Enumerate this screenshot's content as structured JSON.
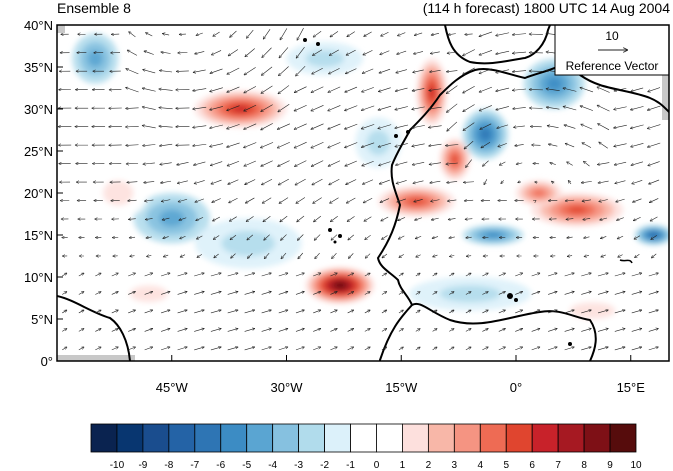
{
  "header": {
    "left": "Ensemble 8",
    "right": "(114 h forecast) 1800 UTC 14 Aug 2004"
  },
  "axes": {
    "y_labels": [
      "40°N",
      "35°N",
      "30°N",
      "25°N",
      "20°N",
      "15°N",
      "10°N",
      "5°N",
      "0°"
    ],
    "x_labels": [
      "45°W",
      "30°W",
      "15°W",
      "0°",
      "15°E"
    ]
  },
  "reference_vector": {
    "value": "10",
    "label": "Reference Vector"
  },
  "colorbar": {
    "labels": [
      "-10",
      "-9",
      "-8",
      "-7",
      "-6",
      "-5",
      "-4",
      "-3",
      "-2",
      "-1",
      "0",
      "1",
      "2",
      "3",
      "4",
      "5",
      "6",
      "7",
      "8",
      "9",
      "10"
    ],
    "colors": [
      "#0a2350",
      "#083670",
      "#1a4d8e",
      "#2463a6",
      "#2e75b4",
      "#3c8cc4",
      "#5aa5d2",
      "#86c1e0",
      "#b1dcec",
      "#dcf1fa",
      "#ffffff",
      "#ffffff",
      "#fde0dd",
      "#f8b7a8",
      "#f59482",
      "#ee6b54",
      "#e0452f",
      "#c8222a",
      "#a61922",
      "#7e1016",
      "#560c0c"
    ]
  },
  "map": {
    "lon_range": [
      -60,
      20
    ],
    "lat_range": [
      0,
      40
    ],
    "anomalies": [
      {
        "lon": -36,
        "lat": 30,
        "rx": 6,
        "ry": 2.2,
        "val": 6
      },
      {
        "lon": -23,
        "lat": 9,
        "rx": 4.5,
        "ry": 2.2,
        "val": 9
      },
      {
        "lon": -11,
        "lat": 32,
        "rx": 2,
        "ry": 4,
        "val": 6
      },
      {
        "lon": -13,
        "lat": 19,
        "rx": 5,
        "ry": 1.8,
        "val": 5
      },
      {
        "lon": -8,
        "lat": 24,
        "rx": 2,
        "ry": 2.5,
        "val": 5
      },
      {
        "lon": 8,
        "lat": 18,
        "rx": 6,
        "ry": 2,
        "val": 5
      },
      {
        "lon": 3,
        "lat": 20,
        "rx": 3,
        "ry": 1.5,
        "val": 4
      },
      {
        "lon": -4,
        "lat": 27,
        "rx": 3,
        "ry": 3,
        "val": -5
      },
      {
        "lon": 5,
        "lat": 33,
        "rx": 4,
        "ry": 3,
        "val": -4
      },
      {
        "lon": -55,
        "lat": 36,
        "rx": 3,
        "ry": 3,
        "val": -3
      },
      {
        "lon": -45,
        "lat": 17,
        "rx": 5,
        "ry": 3,
        "val": -3
      },
      {
        "lon": -35,
        "lat": 14,
        "rx": 7,
        "ry": 3,
        "val": -2
      },
      {
        "lon": -18,
        "lat": 26,
        "rx": 3,
        "ry": 3,
        "val": -2
      },
      {
        "lon": -3,
        "lat": 15,
        "rx": 4,
        "ry": 1.2,
        "val": -4
      },
      {
        "lon": 18,
        "lat": 15,
        "rx": 2.5,
        "ry": 1.2,
        "val": -6
      },
      {
        "lon": -6,
        "lat": 8,
        "rx": 8,
        "ry": 2,
        "val": -2
      },
      {
        "lon": -48,
        "lat": 8,
        "rx": 5,
        "ry": 2,
        "val": 2
      },
      {
        "lon": -52,
        "lat": 20,
        "rx": 4,
        "ry": 3,
        "val": 2
      },
      {
        "lon": -25,
        "lat": 36,
        "rx": 5,
        "ry": 2,
        "val": -2
      },
      {
        "lon": 10,
        "lat": 6,
        "rx": 6,
        "ry": 2,
        "val": 2
      }
    ]
  }
}
